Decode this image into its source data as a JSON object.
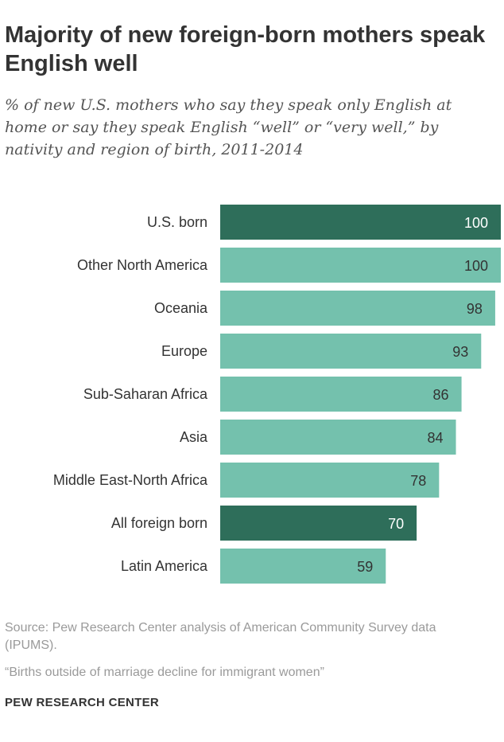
{
  "chart_data": {
    "type": "bar",
    "orientation": "horizontal",
    "title": "Majority of new foreign-born  mothers speak English well",
    "subtitle": "% of new U.S. mothers who say they speak only English at home or say they speak English “well” or “very well,” by nativity and region of birth, 2011-2014",
    "categories": [
      "U.S. born",
      "Other North America",
      "Oceania",
      "Europe",
      "Sub-Saharan Africa",
      "Asia",
      "Middle East-North Africa",
      "All foreign born",
      "Latin America"
    ],
    "values": [
      100,
      100,
      98,
      93,
      86,
      84,
      78,
      70,
      59
    ],
    "highlighted": [
      true,
      false,
      false,
      false,
      false,
      false,
      false,
      true,
      false
    ],
    "xlim": [
      0,
      100
    ],
    "grid": false,
    "colors": {
      "highlight": "#2e6e5a",
      "default": "#74c1ad",
      "highlight_text": "#ffffff",
      "default_text": "#333333"
    }
  },
  "footer": {
    "source": "Source: Pew Research Center analysis of American Community Survey data (IPUMS).",
    "note": "“Births outside of marriage decline for immigrant women”",
    "brand": "PEW RESEARCH CENTER"
  }
}
